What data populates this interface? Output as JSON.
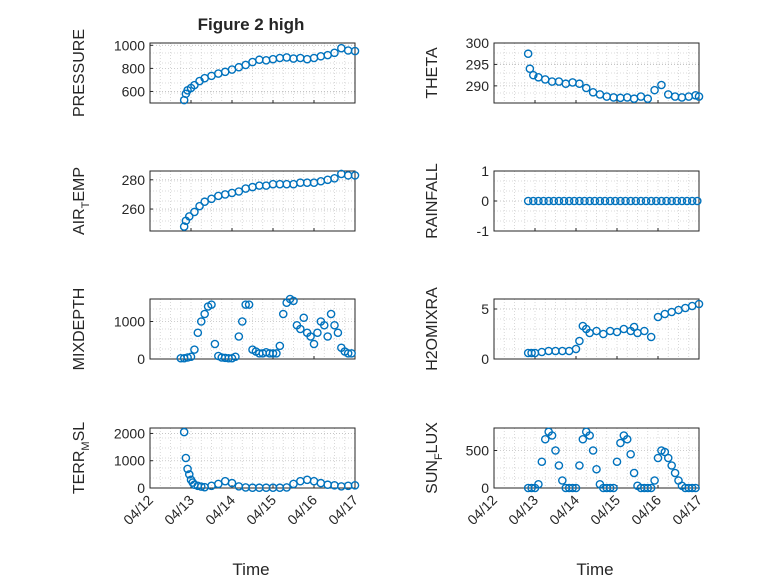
{
  "chart_data": [
    {
      "type": "scatter",
      "title": "Figure 2 high",
      "ylabel": "PRESSURE",
      "ylim": [
        500,
        1020
      ],
      "yticks": [
        600,
        800,
        1000
      ],
      "xlim": [
        "04/12",
        "04/17"
      ],
      "series": [
        {
          "x": [
            "04/12 20:00",
            "04/12 21:00",
            "04/12 22:00",
            "04/13 00:00",
            "04/13 02:00",
            "04/13 05:00",
            "04/13 08:00",
            "04/13 12:00",
            "04/13 16:00",
            "04/13 20:00",
            "04/14 00:00",
            "04/14 04:00",
            "04/14 08:00",
            "04/14 12:00",
            "04/14 16:00",
            "04/14 20:00",
            "04/15 00:00",
            "04/15 04:00",
            "04/15 08:00",
            "04/15 12:00",
            "04/15 16:00",
            "04/15 20:00",
            "04/16 00:00",
            "04/16 04:00",
            "04/16 08:00",
            "04/16 12:00",
            "04/16 16:00",
            "04/16 20:00",
            "04/17 00:00"
          ],
          "y": [
            525,
            580,
            610,
            630,
            655,
            690,
            715,
            735,
            755,
            770,
            790,
            810,
            830,
            855,
            875,
            870,
            880,
            890,
            895,
            885,
            890,
            880,
            890,
            905,
            915,
            935,
            975,
            955,
            950
          ]
        }
      ]
    },
    {
      "type": "scatter",
      "ylabel": "THETA",
      "ylim": [
        286,
        300
      ],
      "yticks": [
        290,
        295,
        300
      ],
      "xlim": [
        "04/12",
        "04/17"
      ],
      "series": [
        {
          "x": [
            "04/12 20:00",
            "04/12 21:00",
            "04/12 23:00",
            "04/13 02:00",
            "04/13 06:00",
            "04/13 10:00",
            "04/13 14:00",
            "04/13 18:00",
            "04/13 22:00",
            "04/14 02:00",
            "04/14 06:00",
            "04/14 10:00",
            "04/14 14:00",
            "04/14 18:00",
            "04/14 22:00",
            "04/15 02:00",
            "04/15 06:00",
            "04/15 10:00",
            "04/15 14:00",
            "04/15 18:00",
            "04/15 22:00",
            "04/16 02:00",
            "04/16 06:00",
            "04/16 10:00",
            "04/16 14:00",
            "04/16 18:00",
            "04/16 22:00",
            "04/17 00:00"
          ],
          "y": [
            297.5,
            294.0,
            292.5,
            292.0,
            291.5,
            291.0,
            291.0,
            290.5,
            290.8,
            290.5,
            289.5,
            288.5,
            288.0,
            287.5,
            287.3,
            287.2,
            287.3,
            287.0,
            287.5,
            287.0,
            289.0,
            290.2,
            288.0,
            287.5,
            287.3,
            287.5,
            287.8,
            287.5
          ]
        }
      ]
    },
    {
      "type": "scatter",
      "ylabel": "AIR_TEMP",
      "ylim": [
        245,
        286
      ],
      "yticks": [
        260,
        280
      ],
      "xlim": [
        "04/12",
        "04/17"
      ],
      "series": [
        {
          "x": [
            "04/12 20:00",
            "04/12 21:00",
            "04/12 23:00",
            "04/13 02:00",
            "04/13 05:00",
            "04/13 08:00",
            "04/13 12:00",
            "04/13 16:00",
            "04/13 20:00",
            "04/14 00:00",
            "04/14 04:00",
            "04/14 08:00",
            "04/14 12:00",
            "04/14 16:00",
            "04/14 20:00",
            "04/15 00:00",
            "04/15 04:00",
            "04/15 08:00",
            "04/15 12:00",
            "04/15 16:00",
            "04/15 20:00",
            "04/16 00:00",
            "04/16 04:00",
            "04/16 08:00",
            "04/16 12:00",
            "04/16 16:00",
            "04/16 20:00",
            "04/17 00:00"
          ],
          "y": [
            248,
            252,
            255,
            258,
            262,
            265,
            267,
            269,
            270,
            271,
            272,
            274,
            275,
            276,
            276,
            277,
            277,
            277,
            277,
            278,
            278,
            278,
            279,
            280,
            281,
            284,
            283,
            283
          ]
        }
      ]
    },
    {
      "type": "scatter",
      "ylabel": "RAINFALL",
      "ylim": [
        -1,
        1
      ],
      "yticks": [
        -1,
        0,
        1
      ],
      "xlim": [
        "04/12",
        "04/17"
      ],
      "series": [
        {
          "x": [
            "04/12 20:00",
            "04/12 23:00",
            "04/13 02:00",
            "04/13 05:00",
            "04/13 08:00",
            "04/13 11:00",
            "04/13 14:00",
            "04/13 17:00",
            "04/13 20:00",
            "04/13 23:00",
            "04/14 02:00",
            "04/14 05:00",
            "04/14 08:00",
            "04/14 11:00",
            "04/14 14:00",
            "04/14 17:00",
            "04/14 20:00",
            "04/14 23:00",
            "04/15 02:00",
            "04/15 05:00",
            "04/15 08:00",
            "04/15 11:00",
            "04/15 14:00",
            "04/15 17:00",
            "04/15 20:00",
            "04/15 23:00",
            "04/16 02:00",
            "04/16 05:00",
            "04/16 08:00",
            "04/16 11:00",
            "04/16 14:00",
            "04/16 17:00",
            "04/16 20:00",
            "04/16 23:00"
          ],
          "y": [
            0,
            0,
            0,
            0,
            0,
            0,
            0,
            0,
            0,
            0,
            0,
            0,
            0,
            0,
            0,
            0,
            0,
            0,
            0,
            0,
            0,
            0,
            0,
            0,
            0,
            0,
            0,
            0,
            0,
            0,
            0,
            0,
            0,
            0
          ]
        }
      ]
    },
    {
      "type": "scatter",
      "ylabel": "MIXDEPTH",
      "ylim": [
        0,
        1600
      ],
      "yticks": [
        0,
        1000
      ],
      "xlim": [
        "04/12",
        "04/17"
      ],
      "series": [
        {
          "x": [
            "04/12 18:00",
            "04/12 20:00",
            "04/12 22:00",
            "04/13 00:00",
            "04/13 02:00",
            "04/13 04:00",
            "04/13 06:00",
            "04/13 08:00",
            "04/13 10:00",
            "04/13 12:00",
            "04/13 14:00",
            "04/13 16:00",
            "04/13 18:00",
            "04/13 20:00",
            "04/13 22:00",
            "04/14 00:00",
            "04/14 02:00",
            "04/14 04:00",
            "04/14 06:00",
            "04/14 08:00",
            "04/14 10:00",
            "04/14 12:00",
            "04/14 14:00",
            "04/14 16:00",
            "04/14 18:00",
            "04/14 20:00",
            "04/14 22:00",
            "04/15 00:00",
            "04/15 02:00",
            "04/15 04:00",
            "04/15 06:00",
            "04/15 08:00",
            "04/15 10:00",
            "04/15 12:00",
            "04/15 14:00",
            "04/15 16:00",
            "04/15 18:00",
            "04/15 20:00",
            "04/15 22:00",
            "04/16 00:00",
            "04/16 02:00",
            "04/16 04:00",
            "04/16 06:00",
            "04/16 08:00",
            "04/16 10:00",
            "04/16 12:00",
            "04/16 14:00",
            "04/16 16:00",
            "04/16 18:00",
            "04/16 20:00",
            "04/16 22:00"
          ],
          "y": [
            20,
            20,
            40,
            60,
            250,
            700,
            1000,
            1200,
            1400,
            1450,
            400,
            80,
            40,
            30,
            20,
            20,
            60,
            600,
            1000,
            1450,
            1450,
            250,
            200,
            150,
            150,
            180,
            150,
            150,
            150,
            350,
            1200,
            1500,
            1600,
            1550,
            900,
            800,
            1100,
            700,
            600,
            400,
            700,
            1000,
            900,
            600,
            1200,
            900,
            700,
            300,
            200,
            150,
            150
          ]
        }
      ]
    },
    {
      "type": "scatter",
      "ylabel": "H2OMIXRA",
      "ylim": [
        0,
        6
      ],
      "yticks": [
        0,
        5
      ],
      "xlim": [
        "04/12",
        "04/17"
      ],
      "series": [
        {
          "x": [
            "04/12 20:00",
            "04/12 22:00",
            "04/13 00:00",
            "04/13 04:00",
            "04/13 08:00",
            "04/13 12:00",
            "04/13 16:00",
            "04/13 20:00",
            "04/14 00:00",
            "04/14 02:00",
            "04/14 04:00",
            "04/14 06:00",
            "04/14 08:00",
            "04/14 12:00",
            "04/14 16:00",
            "04/14 20:00",
            "04/15 00:00",
            "04/15 04:00",
            "04/15 08:00",
            "04/15 10:00",
            "04/15 12:00",
            "04/15 16:00",
            "04/15 20:00",
            "04/16 00:00",
            "04/16 04:00",
            "04/16 08:00",
            "04/16 12:00",
            "04/16 16:00",
            "04/16 20:00",
            "04/17 00:00"
          ],
          "y": [
            0.6,
            0.6,
            0.6,
            0.7,
            0.8,
            0.8,
            0.8,
            0.8,
            1.0,
            1.8,
            3.3,
            3.0,
            2.6,
            2.8,
            2.5,
            2.8,
            2.7,
            3.0,
            2.8,
            3.2,
            2.6,
            2.8,
            2.2,
            4.2,
            4.5,
            4.7,
            4.9,
            5.1,
            5.3,
            5.5
          ]
        }
      ]
    },
    {
      "type": "scatter",
      "ylabel": "TERR_MSL",
      "ylim": [
        0,
        2200
      ],
      "yticks": [
        0,
        1000,
        2000
      ],
      "xlim": [
        "04/12",
        "04/17"
      ],
      "series": [
        {
          "x": [
            "04/12 20:00",
            "04/12 21:00",
            "04/12 22:00",
            "04/12 23:00",
            "04/13 00:00",
            "04/13 01:00",
            "04/13 02:00",
            "04/13 04:00",
            "04/13 06:00",
            "04/13 08:00",
            "04/13 12:00",
            "04/13 16:00",
            "04/13 20:00",
            "04/14 00:00",
            "04/14 04:00",
            "04/14 08:00",
            "04/14 12:00",
            "04/14 16:00",
            "04/14 20:00",
            "04/15 00:00",
            "04/15 04:00",
            "04/15 08:00",
            "04/15 12:00",
            "04/15 16:00",
            "04/15 20:00",
            "04/16 00:00",
            "04/16 04:00",
            "04/16 08:00",
            "04/16 12:00",
            "04/16 16:00",
            "04/16 20:00",
            "04/17 00:00"
          ],
          "y": [
            2050,
            1100,
            700,
            500,
            300,
            200,
            120,
            80,
            50,
            30,
            80,
            150,
            250,
            180,
            60,
            20,
            10,
            10,
            10,
            10,
            10,
            20,
            150,
            250,
            300,
            250,
            180,
            120,
            100,
            60,
            80,
            100
          ]
        }
      ]
    },
    {
      "type": "scatter",
      "ylabel": "SUN_FLUX",
      "ylim": [
        0,
        800
      ],
      "yticks": [
        0,
        500
      ],
      "xlim": [
        "04/12",
        "04/17"
      ],
      "series": [
        {
          "x": [
            "04/12 20:00",
            "04/12 22:00",
            "04/13 00:00",
            "04/13 02:00",
            "04/13 04:00",
            "04/13 06:00",
            "04/13 08:00",
            "04/13 10:00",
            "04/13 12:00",
            "04/13 14:00",
            "04/13 16:00",
            "04/13 18:00",
            "04/13 20:00",
            "04/13 22:00",
            "04/14 00:00",
            "04/14 02:00",
            "04/14 04:00",
            "04/14 06:00",
            "04/14 08:00",
            "04/14 10:00",
            "04/14 12:00",
            "04/14 14:00",
            "04/14 16:00",
            "04/14 18:00",
            "04/14 20:00",
            "04/14 22:00",
            "04/15 00:00",
            "04/15 02:00",
            "04/15 04:00",
            "04/15 06:00",
            "04/15 08:00",
            "04/15 10:00",
            "04/15 12:00",
            "04/15 14:00",
            "04/15 16:00",
            "04/15 18:00",
            "04/15 20:00",
            "04/15 22:00",
            "04/16 00:00",
            "04/16 02:00",
            "04/16 04:00",
            "04/16 06:00",
            "04/16 08:00",
            "04/16 10:00",
            "04/16 12:00",
            "04/16 14:00",
            "04/16 16:00",
            "04/16 18:00",
            "04/16 20:00",
            "04/16 22:00"
          ],
          "y": [
            0,
            0,
            0,
            50,
            350,
            650,
            750,
            700,
            500,
            300,
            100,
            0,
            0,
            0,
            0,
            300,
            650,
            750,
            700,
            500,
            250,
            50,
            0,
            0,
            0,
            0,
            350,
            600,
            700,
            650,
            450,
            200,
            30,
            0,
            0,
            0,
            0,
            100,
            400,
            500,
            480,
            400,
            300,
            200,
            100,
            30,
            0,
            0,
            0,
            0
          ]
        }
      ]
    }
  ],
  "xticks": [
    "04/12",
    "04/13",
    "04/14",
    "04/15",
    "04/16",
    "04/17"
  ],
  "xlabel": "Time",
  "colors": {
    "marker": "#0072bd",
    "axis": "#262626",
    "grid": "#cfcfcf"
  }
}
